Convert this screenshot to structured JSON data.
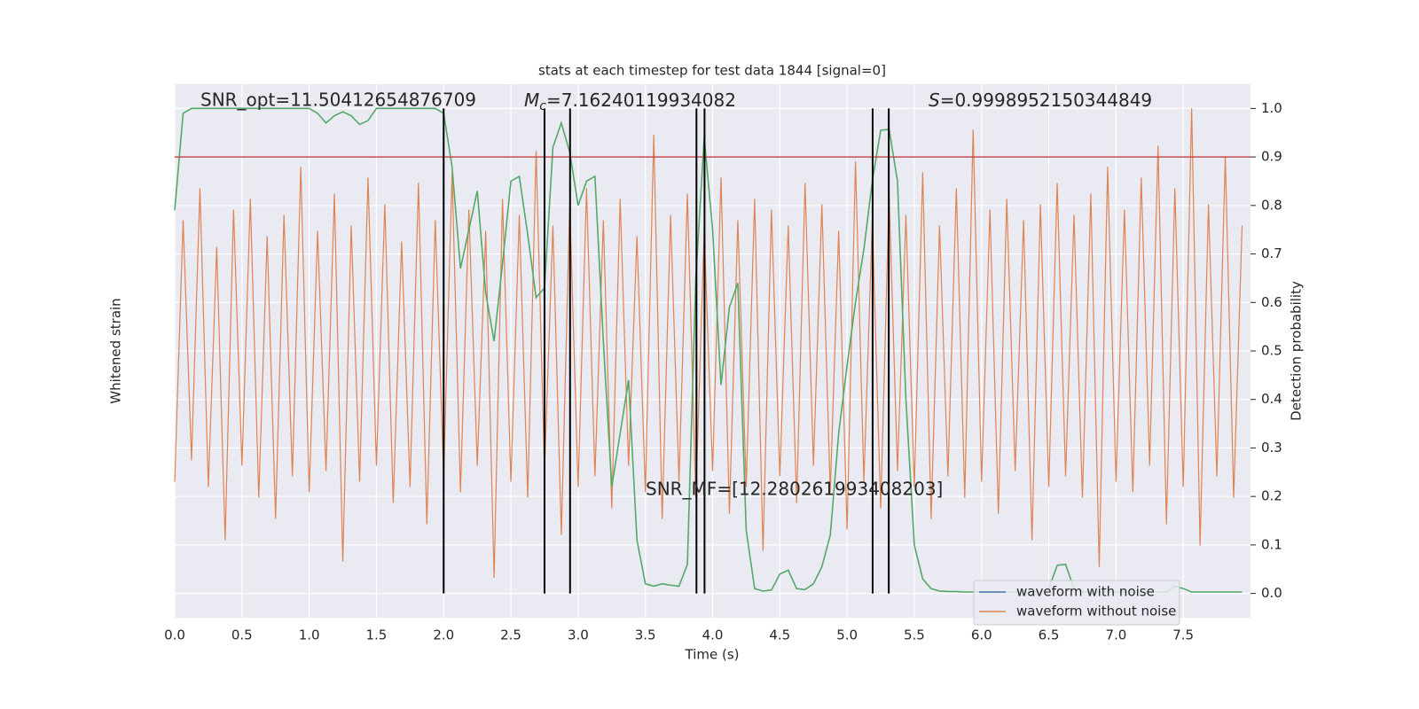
{
  "chart_data": {
    "type": "line",
    "title": "stats at each timestep for test data 1844 [signal=0]",
    "xlabel": "Time (s)",
    "ylabel": "Whitened strain",
    "y2label": "Detection probability",
    "xlim": [
      0,
      8
    ],
    "xticks": [
      {
        "value": 0,
        "label": "0.0"
      },
      0.5,
      {
        "value": 1,
        "label": "1.0"
      },
      1.5,
      {
        "value": 2,
        "label": "2.0"
      },
      2.5,
      {
        "value": 3,
        "label": "3.0"
      },
      3.5,
      {
        "value": 4,
        "label": "4.0"
      },
      4.5,
      {
        "value": 5,
        "label": "5.0"
      },
      5.5,
      {
        "value": 6,
        "label": "6.0"
      },
      6.5,
      {
        "value": 7,
        "label": "7.0"
      },
      7.5
    ],
    "ylim": [
      -4.85,
      5.15
    ],
    "y2lim": [
      -0.05,
      1.05
    ],
    "y2ticks": [
      {
        "value": 0,
        "label": "0.0"
      },
      0.1,
      0.2,
      0.3,
      0.4,
      0.5,
      0.6,
      0.7,
      0.8,
      0.9,
      {
        "value": 1,
        "label": "1.0"
      }
    ],
    "grid": true,
    "x": [
      0,
      0.0625,
      0.125,
      0.1875,
      0.25,
      0.3125,
      0.375,
      0.4375,
      0.5,
      0.5625,
      0.625,
      0.6875,
      0.75,
      0.8125,
      0.875,
      0.9375,
      1,
      1.0625,
      1.125,
      1.1875,
      1.25,
      1.3125,
      1.375,
      1.4375,
      1.5,
      1.5625,
      1.625,
      1.6875,
      1.75,
      1.8125,
      1.875,
      1.9375,
      2,
      2.0625,
      2.125,
      2.1875,
      2.25,
      2.3125,
      2.375,
      2.4375,
      2.5,
      2.5625,
      2.625,
      2.6875,
      2.75,
      2.8125,
      2.875,
      2.9375,
      3,
      3.0625,
      3.125,
      3.1875,
      3.25,
      3.3125,
      3.375,
      3.4375,
      3.5,
      3.5625,
      3.625,
      3.6875,
      3.75,
      3.8125,
      3.875,
      3.9375,
      4,
      4.0625,
      4.125,
      4.1875,
      4.25,
      4.3125,
      4.375,
      4.4375,
      4.5,
      4.5625,
      4.625,
      4.6875,
      4.75,
      4.8125,
      4.875,
      4.9375,
      5,
      5.0625,
      5.125,
      5.1875,
      5.25,
      5.3125,
      5.375,
      5.4375,
      5.5,
      5.5625,
      5.625,
      5.6875,
      5.75,
      5.8125,
      5.875,
      5.9375,
      6,
      6.0625,
      6.125,
      6.1875,
      6.25,
      6.3125,
      6.375,
      6.4375,
      6.5,
      6.5625,
      6.625,
      6.6875,
      6.75,
      6.8125,
      6.875,
      6.9375,
      7,
      7.0625,
      7.125,
      7.1875,
      7.25,
      7.3125,
      7.375,
      7.4375,
      7.5,
      7.5625,
      7.625,
      7.6875,
      7.75,
      7.8125,
      7.875,
      7.9375
    ],
    "series": [
      {
        "name": "waveform without noise",
        "color": "#dd8452",
        "axis": "y",
        "values": [
          -2.3,
          2.6,
          -1.9,
          3.2,
          -2.4,
          2.1,
          -3.4,
          2.8,
          -2.0,
          3.0,
          -2.6,
          2.3,
          -3.0,
          2.7,
          -2.2,
          3.6,
          -2.5,
          2.4,
          -2.1,
          3.1,
          -3.8,
          2.5,
          -2.3,
          3.4,
          -2.0,
          2.9,
          -2.7,
          2.2,
          -2.4,
          3.3,
          -3.1,
          2.6,
          -2.2,
          3.5,
          -2.5,
          2.8,
          -2.0,
          2.4,
          -4.1,
          3.0,
          -2.3,
          2.7,
          -2.6,
          3.9,
          -2.1,
          2.5,
          -3.3,
          2.9,
          -2.4,
          3.2,
          -2.2,
          2.6,
          -2.8,
          3.0,
          -2.0,
          2.3,
          -2.5,
          4.2,
          -3.0,
          2.7,
          -2.3,
          3.1,
          -2.6,
          2.4,
          -2.1,
          3.4,
          -2.9,
          2.6,
          -2.4,
          3.0,
          -3.6,
          2.8,
          -2.2,
          2.5,
          -2.7,
          3.3,
          -2.0,
          2.9,
          -2.5,
          2.4,
          -3.2,
          3.7,
          -2.3,
          2.6,
          -2.8,
          3.1,
          -2.1,
          2.7,
          -2.4,
          3.5,
          -3.0,
          2.5,
          -2.2,
          3.2,
          -2.6,
          4.3,
          -2.3,
          2.8,
          -2.9,
          3.0,
          -2.1,
          2.6,
          -3.4,
          2.9,
          -2.4,
          3.3,
          -2.2,
          2.7,
          -2.6,
          3.1,
          -3.9,
          3.6,
          -2.3,
          2.8,
          -2.5,
          3.4,
          -2.0,
          4.0,
          -3.1,
          3.2,
          -2.4,
          4.7,
          -3.5,
          2.9,
          -2.2,
          3.8,
          -2.6,
          2.5
        ]
      },
      {
        "color": "#55a868",
        "axis": "y2",
        "values": [
          0.79,
          0.99,
          1.0,
          1.0,
          1.0,
          1.0,
          1.0,
          1.0,
          1.0,
          1.0,
          1.0,
          1.0,
          1.0,
          1.0,
          1.0,
          1.0,
          1.0,
          0.99,
          0.97,
          0.985,
          0.993,
          0.985,
          0.967,
          0.975,
          1.0,
          1.0,
          1.0,
          1.0,
          1.0,
          1.0,
          1.0,
          1.0,
          0.99,
          0.88,
          0.67,
          0.75,
          0.83,
          0.62,
          0.52,
          0.68,
          0.85,
          0.86,
          0.74,
          0.61,
          0.63,
          0.92,
          0.97,
          0.91,
          0.8,
          0.85,
          0.86,
          0.52,
          0.22,
          0.33,
          0.44,
          0.11,
          0.02,
          0.015,
          0.02,
          0.017,
          0.015,
          0.06,
          0.65,
          0.94,
          0.75,
          0.43,
          0.59,
          0.64,
          0.13,
          0.01,
          0.005,
          0.007,
          0.04,
          0.048,
          0.01,
          0.008,
          0.02,
          0.055,
          0.12,
          0.33,
          0.47,
          0.6,
          0.71,
          0.85,
          0.955,
          0.957,
          0.85,
          0.4,
          0.1,
          0.03,
          0.01,
          0.005,
          0.004,
          0.004,
          0.003,
          0.003,
          0.003,
          0.003,
          0.003,
          0.003,
          0.003,
          0.003,
          0.003,
          0.003,
          0.01,
          0.058,
          0.06,
          0.01,
          0.003,
          0.003,
          0.003,
          0.003,
          0.003,
          0.003,
          0.003,
          0.003,
          0.003,
          0.003,
          0.003,
          0.015,
          0.01,
          0.003,
          0.003,
          0.003,
          0.003,
          0.003,
          0.003,
          0.003
        ]
      }
    ],
    "hline": {
      "value": 0.9,
      "color": "#c44e52",
      "axis": "y2"
    },
    "vlines": {
      "x": [
        2.0,
        2.75,
        2.94,
        3.88,
        3.94,
        5.19,
        5.31
      ],
      "ymin": 0,
      "ymax": 1,
      "axis": "y2",
      "color": "#000000"
    },
    "legend": {
      "loc": "lower right",
      "entries": [
        {
          "name": "waveform with noise",
          "color": "#4c72b0"
        },
        {
          "name": "waveform without noise",
          "color": "#dd8452"
        }
      ]
    },
    "annotations": [
      {
        "text": "SNR_opt=11.50412654876709"
      },
      {
        "symbol": "M",
        "subscript": "c",
        "text": "=7.16240119934082"
      },
      {
        "symbol": "S",
        "text": "=0.9998952150344849"
      },
      {
        "text": "SNR_MF=[12.280261993408203]"
      }
    ]
  }
}
